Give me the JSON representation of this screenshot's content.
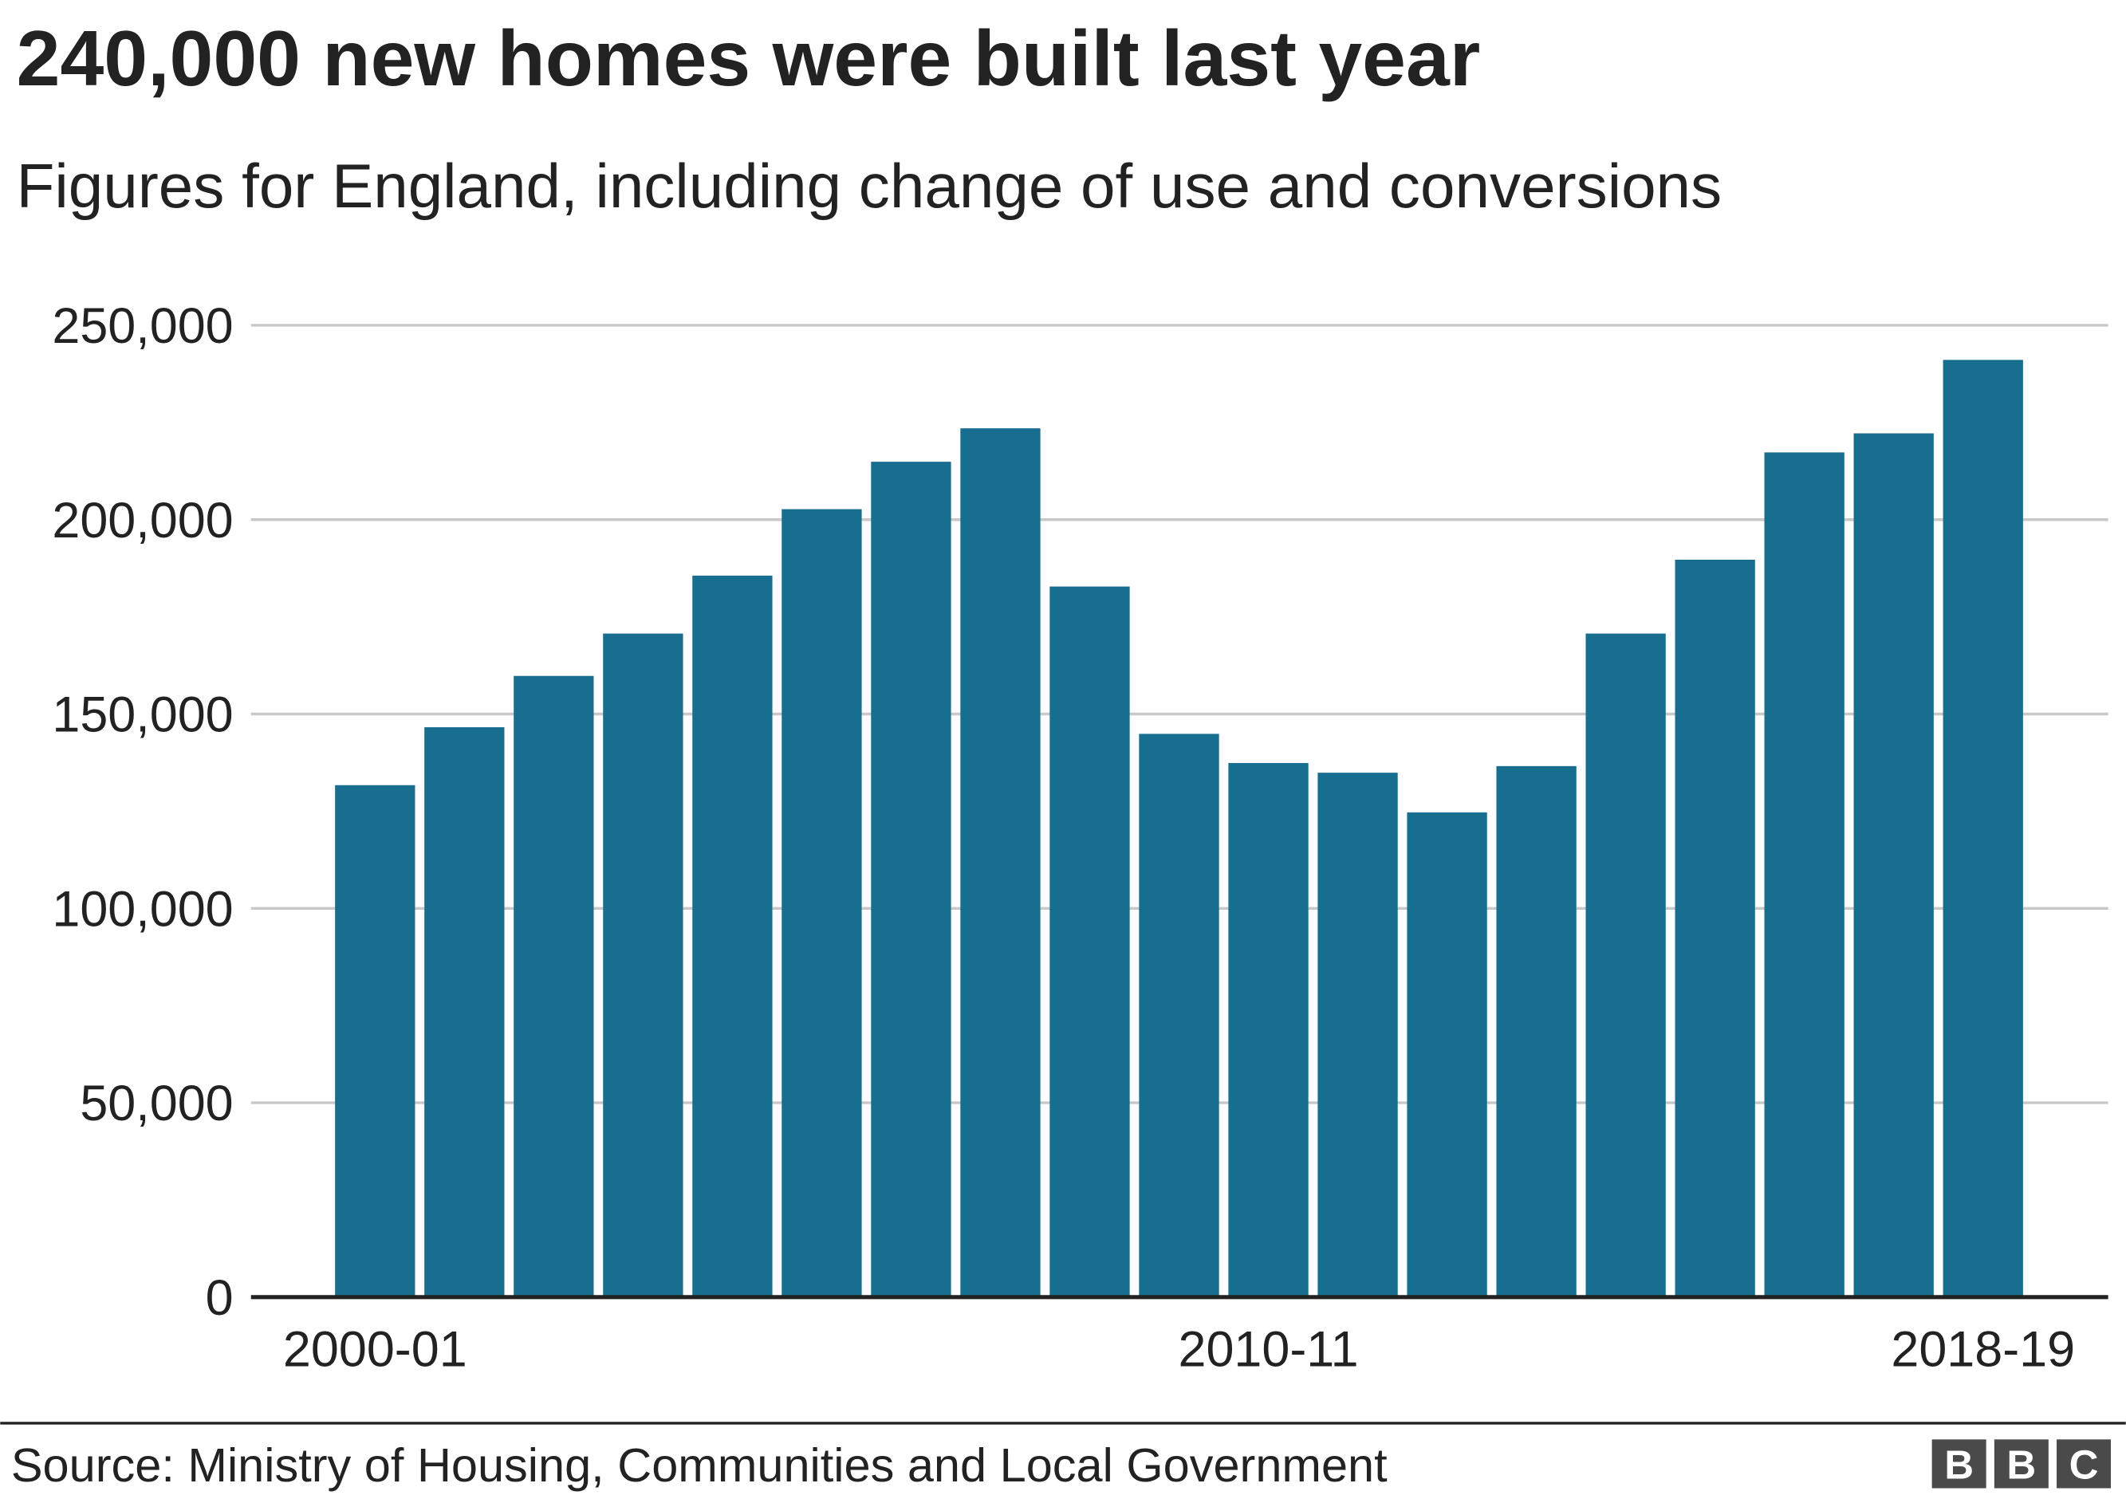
{
  "chart_data": {
    "type": "bar",
    "title": "240,000 new homes were built last year",
    "subtitle": "Figures for England, including change of use and conversions",
    "xlabel": "",
    "ylabel": "",
    "ylim": [
      0,
      250000
    ],
    "yticks": [
      0,
      50000,
      100000,
      150000,
      200000,
      250000
    ],
    "ytick_labels": [
      "0",
      "50,000",
      "100,000",
      "150,000",
      "200,000",
      "250,000"
    ],
    "xtick_labels": [
      {
        "category": "2000-01",
        "label": "2000-01"
      },
      {
        "category": "2010-11",
        "label": "2010-11"
      },
      {
        "category": "2018-19",
        "label": "2018-19"
      }
    ],
    "grid": true,
    "categories": [
      "2000-01",
      "2001-02",
      "2002-03",
      "2003-04",
      "2004-05",
      "2005-06",
      "2006-07",
      "2007-08",
      "2008-09",
      "2009-10",
      "2010-11",
      "2011-12",
      "2012-13",
      "2013-14",
      "2014-15",
      "2015-16",
      "2016-17",
      "2017-18",
      "2018-19"
    ],
    "values": [
      131700,
      146600,
      159800,
      170700,
      185600,
      202700,
      214900,
      223500,
      182800,
      144900,
      137400,
      134900,
      124700,
      136600,
      170700,
      189700,
      217300,
      222200,
      241100
    ],
    "bar_color": "#176e8f"
  },
  "source": "Source: Ministry of Housing, Communities and Local Government",
  "logo": {
    "letters": [
      "B",
      "B",
      "C"
    ],
    "color": "#4a4a4a"
  }
}
